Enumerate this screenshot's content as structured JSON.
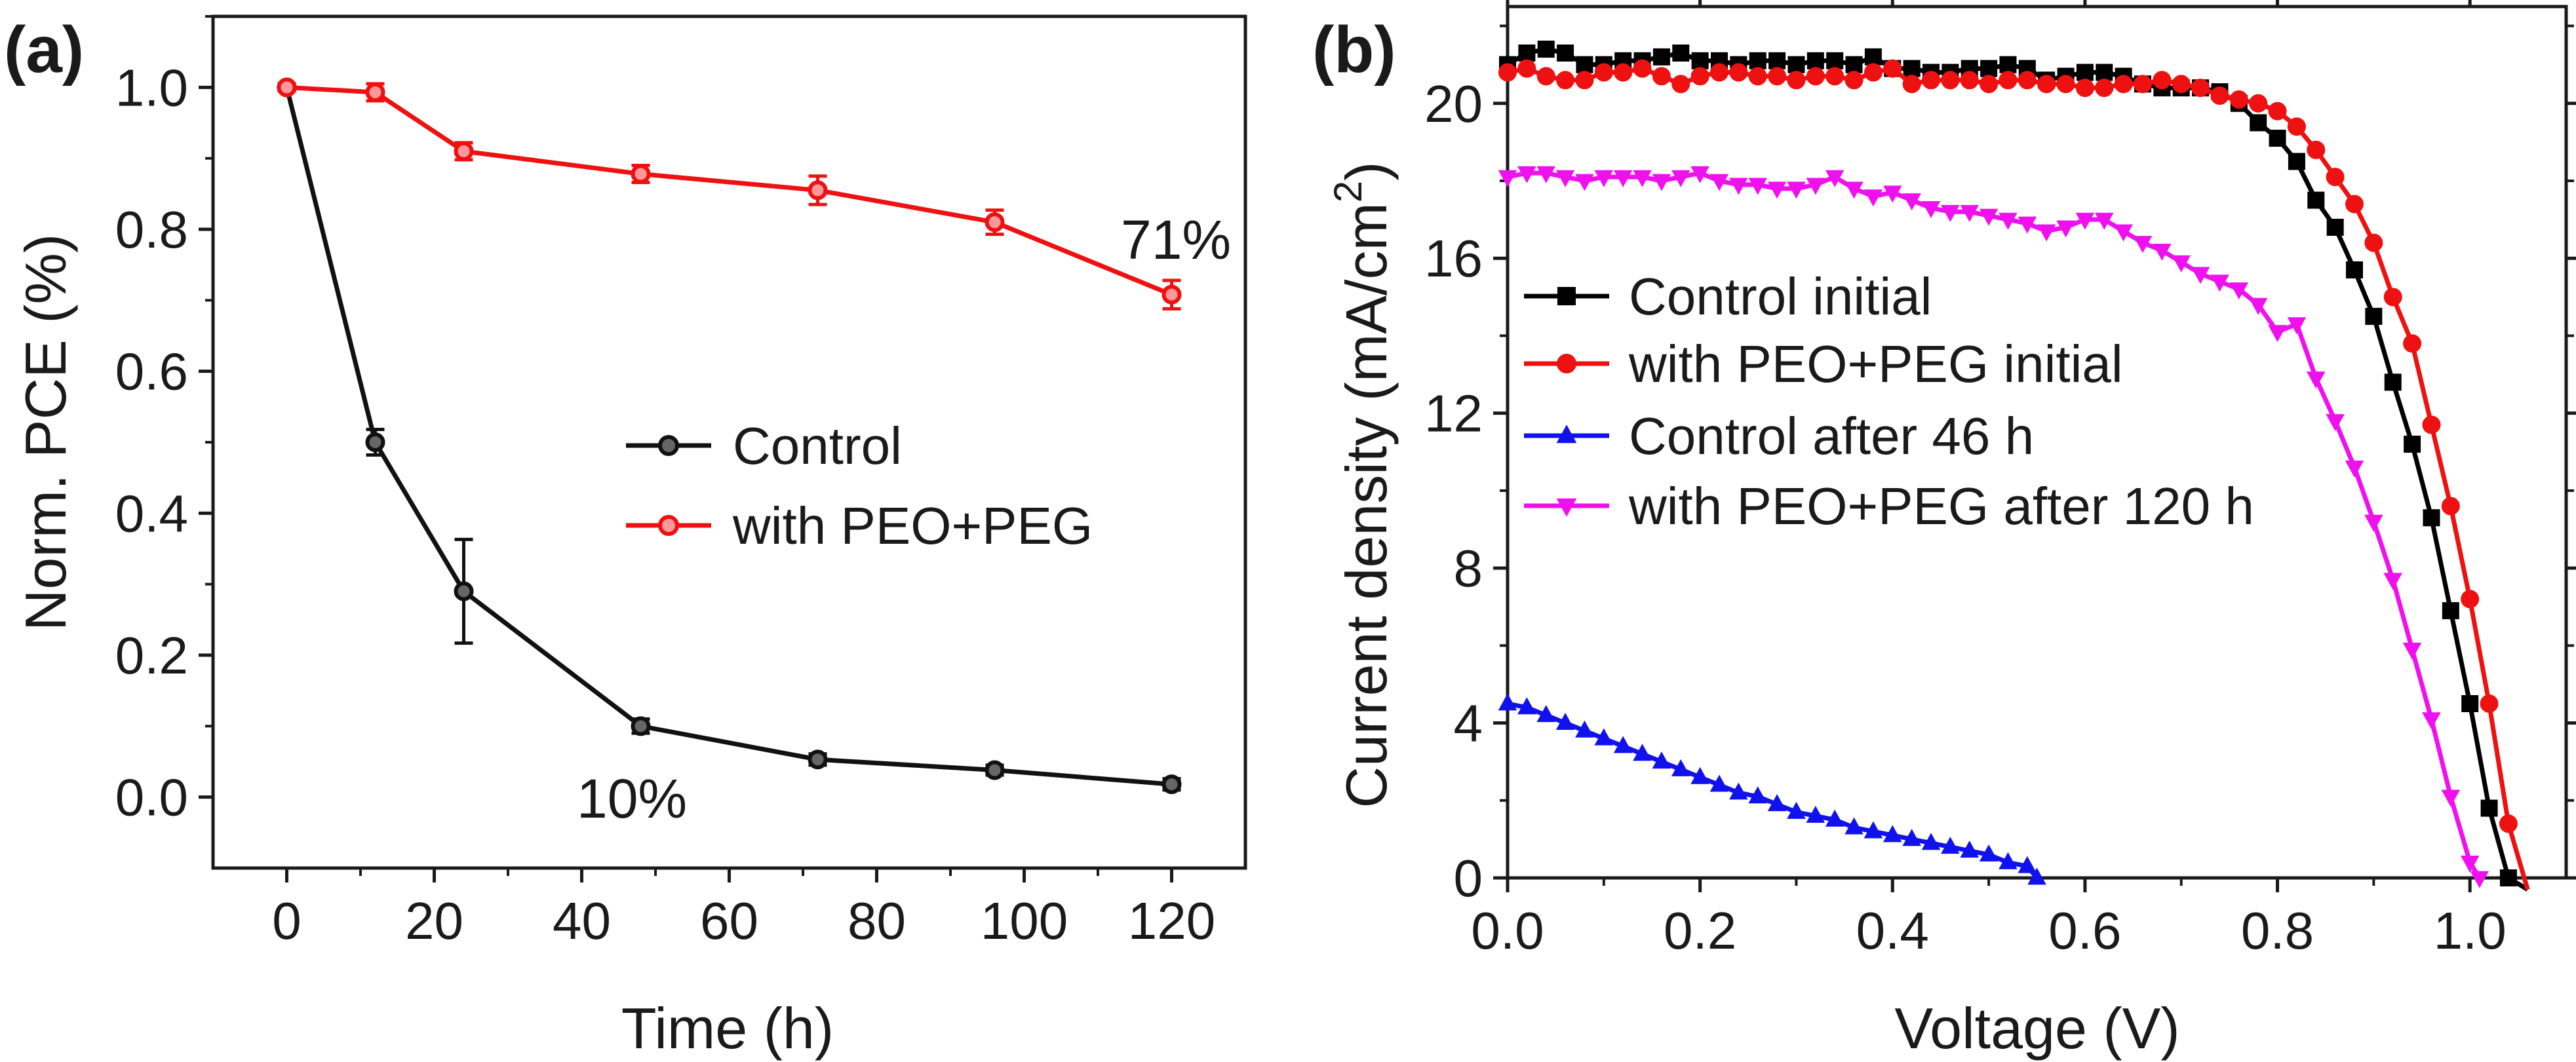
{
  "chart_data": [
    {
      "panel": "(a)",
      "type": "line",
      "title": "",
      "xlabel": "Time (h)",
      "ylabel": "Norm. PCE (%)",
      "xlim": [
        -10,
        130
      ],
      "ylim": [
        -0.1,
        1.1
      ],
      "xticks": [
        0,
        20,
        40,
        60,
        80,
        100,
        120
      ],
      "yticks": [
        0.0,
        0.2,
        0.4,
        0.6,
        0.8,
        1.0
      ],
      "xtick_labels": [
        "0",
        "20",
        "40",
        "60",
        "80",
        "100",
        "120"
      ],
      "ytick_labels": [
        "0.0",
        "0.2",
        "0.4",
        "0.6",
        "0.8",
        "1.0"
      ],
      "legend_position": "center-right",
      "series": [
        {
          "name": "Control",
          "color": "#111111",
          "marker": "circle",
          "x": [
            0,
            12,
            24,
            48,
            72,
            96,
            120
          ],
          "y": [
            1.0,
            0.5,
            0.29,
            0.1,
            0.053,
            0.038,
            0.018
          ],
          "err": [
            0.005,
            0.018,
            0.073,
            0.01,
            0.008,
            0.007,
            0.008
          ]
        },
        {
          "name": "with PEO+PEG",
          "color": "#ee1111",
          "marker": "circle",
          "x": [
            0,
            12,
            24,
            48,
            72,
            96,
            120
          ],
          "y": [
            1.0,
            0.993,
            0.91,
            0.878,
            0.855,
            0.81,
            0.708
          ],
          "err": [
            0.005,
            0.012,
            0.012,
            0.012,
            0.02,
            0.017,
            0.02
          ]
        }
      ],
      "annotations": [
        {
          "text": "71%",
          "x": 120,
          "y": 0.8
        },
        {
          "text": "10%",
          "x": 50,
          "y": 0.0
        }
      ]
    },
    {
      "panel": "(b)",
      "type": "line",
      "title": "",
      "xlabel": "Voltage (V)",
      "ylabel": "Current density (mA/cm",
      "ylabel_superscript": "2",
      "ylabel_suffix": ")",
      "xlim": [
        0,
        1.1
      ],
      "ylim": [
        0,
        22.5
      ],
      "xticks": [
        0.0,
        0.2,
        0.4,
        0.6,
        0.8,
        1.0
      ],
      "yticks": [
        0,
        4,
        8,
        12,
        16,
        20
      ],
      "xtick_labels": [
        "0.0",
        "0.2",
        "0.4",
        "0.6",
        "0.8",
        "1.0"
      ],
      "ytick_labels": [
        "0",
        "4",
        "8",
        "12",
        "16",
        "20"
      ],
      "legend_position": "center-left",
      "series": [
        {
          "name": "Control initial",
          "color": "#000000",
          "marker": "square",
          "x": [
            0.0,
            0.02,
            0.04,
            0.06,
            0.08,
            0.1,
            0.12,
            0.14,
            0.16,
            0.18,
            0.2,
            0.22,
            0.24,
            0.26,
            0.28,
            0.3,
            0.32,
            0.34,
            0.36,
            0.38,
            0.4,
            0.42,
            0.44,
            0.46,
            0.48,
            0.5,
            0.52,
            0.54,
            0.56,
            0.58,
            0.6,
            0.62,
            0.64,
            0.66,
            0.68,
            0.7,
            0.72,
            0.74,
            0.76,
            0.78,
            0.8,
            0.82,
            0.84,
            0.86,
            0.88,
            0.9,
            0.92,
            0.94,
            0.96,
            0.98,
            1.0,
            1.02,
            1.04,
            1.06
          ],
          "y": [
            21.0,
            21.3,
            21.4,
            21.3,
            21.0,
            21.0,
            21.1,
            21.1,
            21.2,
            21.3,
            21.1,
            21.1,
            21.0,
            21.1,
            21.1,
            21.0,
            21.1,
            21.1,
            21.0,
            21.2,
            20.9,
            20.9,
            20.8,
            20.8,
            20.9,
            20.9,
            21.0,
            20.9,
            20.6,
            20.7,
            20.8,
            20.8,
            20.7,
            20.5,
            20.4,
            20.4,
            20.4,
            20.3,
            20.0,
            19.5,
            19.1,
            18.5,
            17.5,
            16.8,
            15.7,
            14.5,
            12.8,
            11.2,
            9.3,
            6.9,
            4.5,
            1.8,
            0.0,
            -0.3
          ]
        },
        {
          "name": "with PEO+PEG initial",
          "color": "#ee1111",
          "marker": "circle",
          "x": [
            0.0,
            0.02,
            0.04,
            0.06,
            0.08,
            0.1,
            0.12,
            0.14,
            0.16,
            0.18,
            0.2,
            0.22,
            0.24,
            0.26,
            0.28,
            0.3,
            0.32,
            0.34,
            0.36,
            0.38,
            0.4,
            0.42,
            0.44,
            0.46,
            0.48,
            0.5,
            0.52,
            0.54,
            0.56,
            0.58,
            0.6,
            0.62,
            0.64,
            0.66,
            0.68,
            0.7,
            0.72,
            0.74,
            0.76,
            0.78,
            0.8,
            0.82,
            0.84,
            0.86,
            0.88,
            0.9,
            0.92,
            0.94,
            0.96,
            0.98,
            1.0,
            1.02,
            1.04,
            1.06
          ],
          "y": [
            20.8,
            20.9,
            20.7,
            20.6,
            20.6,
            20.8,
            20.8,
            20.9,
            20.7,
            20.5,
            20.7,
            20.8,
            20.8,
            20.7,
            20.7,
            20.6,
            20.7,
            20.7,
            20.6,
            20.8,
            20.9,
            20.5,
            20.6,
            20.6,
            20.6,
            20.5,
            20.6,
            20.6,
            20.5,
            20.5,
            20.4,
            20.4,
            20.5,
            20.5,
            20.6,
            20.5,
            20.4,
            20.2,
            20.1,
            20.0,
            19.8,
            19.4,
            18.8,
            18.1,
            17.4,
            16.4,
            15.0,
            13.8,
            11.7,
            9.6,
            7.2,
            4.5,
            1.4,
            -0.3
          ]
        },
        {
          "name": "Control after 46 h",
          "color": "#1111ee",
          "marker": "triangle-up",
          "x": [
            0.0,
            0.02,
            0.04,
            0.06,
            0.08,
            0.1,
            0.12,
            0.14,
            0.16,
            0.18,
            0.2,
            0.22,
            0.24,
            0.26,
            0.28,
            0.3,
            0.32,
            0.34,
            0.36,
            0.38,
            0.4,
            0.42,
            0.44,
            0.46,
            0.48,
            0.5,
            0.52,
            0.54,
            0.55
          ],
          "y": [
            4.5,
            4.4,
            4.2,
            4.0,
            3.8,
            3.6,
            3.4,
            3.2,
            3.0,
            2.8,
            2.6,
            2.4,
            2.2,
            2.1,
            1.9,
            1.7,
            1.6,
            1.5,
            1.3,
            1.2,
            1.1,
            1.0,
            0.9,
            0.8,
            0.7,
            0.6,
            0.4,
            0.3,
            0.0
          ]
        },
        {
          "name": "with PEO+PEG after 120 h",
          "color": "#ee11ee",
          "marker": "triangle-down",
          "x": [
            0.0,
            0.02,
            0.04,
            0.06,
            0.08,
            0.1,
            0.12,
            0.14,
            0.16,
            0.18,
            0.2,
            0.22,
            0.24,
            0.26,
            0.28,
            0.3,
            0.32,
            0.34,
            0.36,
            0.38,
            0.4,
            0.42,
            0.44,
            0.46,
            0.48,
            0.5,
            0.52,
            0.54,
            0.56,
            0.58,
            0.6,
            0.62,
            0.64,
            0.66,
            0.68,
            0.7,
            0.72,
            0.74,
            0.76,
            0.78,
            0.8,
            0.82,
            0.84,
            0.86,
            0.88,
            0.9,
            0.92,
            0.94,
            0.96,
            0.98,
            1.0,
            1.01
          ],
          "y": [
            18.1,
            18.2,
            18.2,
            18.1,
            18.0,
            18.1,
            18.1,
            18.1,
            18.0,
            18.1,
            18.2,
            18.0,
            17.9,
            17.9,
            17.8,
            17.8,
            17.9,
            18.1,
            17.8,
            17.6,
            17.7,
            17.5,
            17.3,
            17.2,
            17.2,
            17.1,
            17.0,
            16.9,
            16.7,
            16.8,
            17.0,
            17.0,
            16.7,
            16.4,
            16.2,
            15.9,
            15.6,
            15.4,
            15.2,
            14.8,
            14.1,
            14.3,
            12.9,
            11.8,
            10.6,
            9.2,
            7.7,
            5.9,
            4.1,
            2.1,
            0.4,
            0.0
          ]
        }
      ]
    }
  ]
}
